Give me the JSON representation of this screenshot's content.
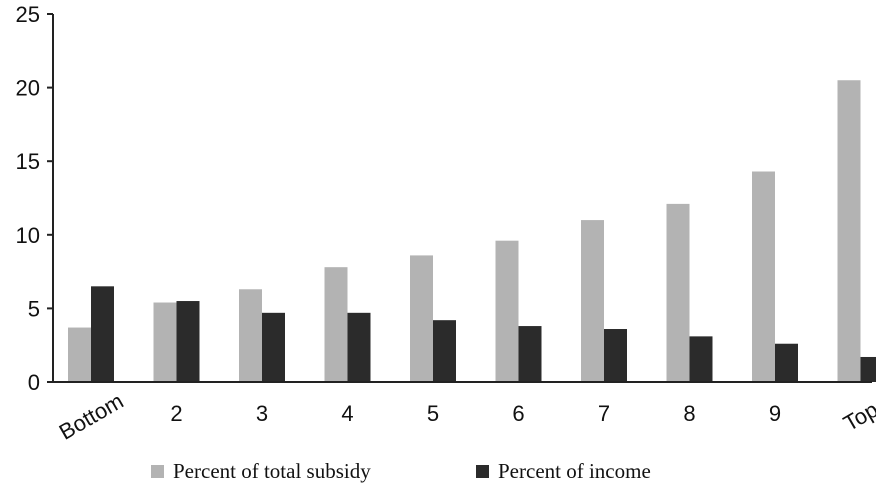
{
  "chart_data": {
    "type": "bar",
    "categories": [
      "Bottom",
      "2",
      "3",
      "4",
      "5",
      "6",
      "7",
      "8",
      "9",
      "Top"
    ],
    "series": [
      {
        "name": "Percent of total subsidy",
        "color": "#b3b3b3",
        "values": [
          3.7,
          5.4,
          6.3,
          7.8,
          8.6,
          9.6,
          11.0,
          12.1,
          14.3,
          20.5
        ]
      },
      {
        "name": "Percent of income",
        "color": "#2b2b2b",
        "values": [
          6.5,
          5.5,
          4.7,
          4.7,
          4.2,
          3.8,
          3.6,
          3.1,
          2.6,
          1.7
        ]
      }
    ],
    "yticks": [
      "0",
      "5",
      "10",
      "15",
      "20",
      "25"
    ],
    "ylim": [
      0,
      25
    ],
    "xlabel": "",
    "ylabel": "",
    "title": "",
    "grid": false,
    "legend_position": "bottom"
  }
}
